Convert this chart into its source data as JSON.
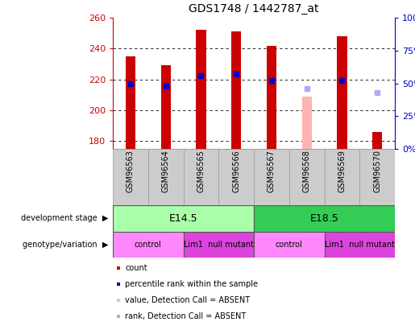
{
  "title": "GDS1748 / 1442787_at",
  "samples": [
    "GSM96563",
    "GSM96564",
    "GSM96565",
    "GSM96566",
    "GSM96567",
    "GSM96568",
    "GSM96569",
    "GSM96570"
  ],
  "count_values": [
    235,
    229,
    252,
    251,
    242,
    null,
    248,
    186
  ],
  "count_absent_values": [
    null,
    null,
    null,
    null,
    null,
    209,
    null,
    null
  ],
  "percentile_values": [
    50,
    48,
    56,
    57,
    52,
    null,
    52,
    null
  ],
  "percentile_absent_values": [
    null,
    null,
    null,
    null,
    null,
    46,
    null,
    43
  ],
  "ylim_left": [
    175,
    260
  ],
  "ylim_right": [
    0,
    100
  ],
  "yticks_left": [
    180,
    200,
    220,
    240,
    260
  ],
  "yticks_right": [
    0,
    25,
    50,
    75,
    100
  ],
  "ylabel_left_color": "#cc0000",
  "ylabel_right_color": "#0000cc",
  "bar_color": "#cc0000",
  "bar_absent_color": "#ffb3b3",
  "dot_color": "#0000cc",
  "dot_absent_color": "#aaaaff",
  "plot_bg": "#ffffff",
  "dev_stage_e145_color": "#aaffaa",
  "dev_stage_e185_color": "#33cc55",
  "geno_control_color": "#ff88ff",
  "geno_mutant_color": "#dd44dd",
  "legend_items": [
    {
      "label": "count",
      "color": "#cc0000"
    },
    {
      "label": "percentile rank within the sample",
      "color": "#0000cc"
    },
    {
      "label": "value, Detection Call = ABSENT",
      "color": "#ffb3b3"
    },
    {
      "label": "rank, Detection Call = ABSENT",
      "color": "#aaaaff"
    }
  ],
  "box_bg": "#cccccc",
  "arrow_color": "#888888"
}
